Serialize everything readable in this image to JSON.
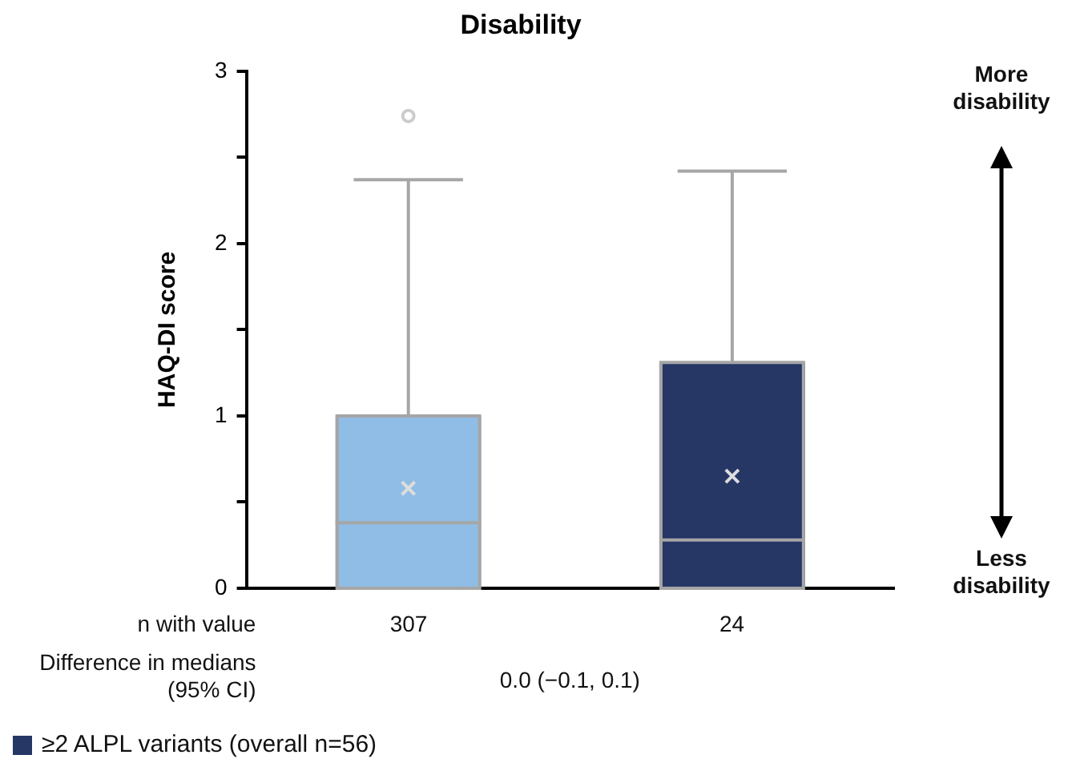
{
  "chart_data": {
    "type": "box",
    "title": "Disability",
    "ylabel": "HAQ-DI score",
    "categories": [
      null,
      null
    ],
    "ylim": [
      0,
      3
    ],
    "yticks": [
      0,
      {
        "value": 0.5,
        "label": null
      },
      1,
      {
        "value": 1.5,
        "label": null
      },
      2,
      {
        "value": 2.5,
        "label": null
      },
      3
    ],
    "series": [
      {
        "color": "#8fbde5",
        "boxes": [
          {
            "low": 0,
            "q1": 0,
            "median": 0.38,
            "q3": 1.0,
            "high": 2.37,
            "mean": 0.58,
            "outliers": [
              2.74
            ]
          },
          null
        ]
      },
      {
        "name": "≥2 ALPL variants (overall n=56)",
        "color": "#263766",
        "boxes": [
          null,
          {
            "low": 0,
            "q1": 0,
            "median": 0.28,
            "q3": 1.31,
            "high": 2.42,
            "mean": 0.65
          }
        ]
      }
    ],
    "annotations": [
      "n with value",
      "307",
      "24",
      "Difference in medians (95% CI)",
      "0.0 (−0.1, 0.1)",
      "More disability",
      "Less disability"
    ],
    "grid": false,
    "legend": "bottom left"
  }
}
